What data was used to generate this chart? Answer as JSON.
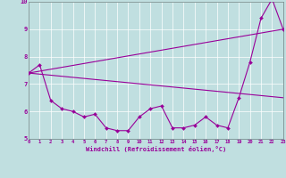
{
  "x_range": [
    0,
    23
  ],
  "y_range": [
    5,
    10
  ],
  "yticks": [
    5,
    6,
    7,
    8,
    9,
    10
  ],
  "xticks": [
    0,
    1,
    2,
    3,
    4,
    5,
    6,
    7,
    8,
    9,
    10,
    11,
    12,
    13,
    14,
    15,
    16,
    17,
    18,
    19,
    20,
    21,
    22,
    23
  ],
  "xlabel": "Windchill (Refroidissement éolien,°C)",
  "background_color": "#c0dfe0",
  "line_color": "#990099",
  "grid_color": "#ffffff",
  "line1_x": [
    0,
    1,
    2,
    3,
    4,
    5,
    6,
    7,
    8,
    9,
    10,
    11,
    12,
    13,
    14,
    15,
    16,
    17,
    18,
    19,
    20,
    21,
    22,
    23
  ],
  "line1_y": [
    7.4,
    7.7,
    6.4,
    6.1,
    6.0,
    5.8,
    5.9,
    5.4,
    5.3,
    5.3,
    5.8,
    6.1,
    6.2,
    5.4,
    5.4,
    5.5,
    5.8,
    5.5,
    5.4,
    6.5,
    7.8,
    9.4,
    10.1,
    9.0
  ],
  "line2_x": [
    0,
    23
  ],
  "line2_y": [
    7.4,
    9.0
  ],
  "line3_x": [
    0,
    23
  ],
  "line3_y": [
    7.4,
    6.5
  ],
  "figwidth": 3.2,
  "figheight": 2.0,
  "dpi": 100
}
